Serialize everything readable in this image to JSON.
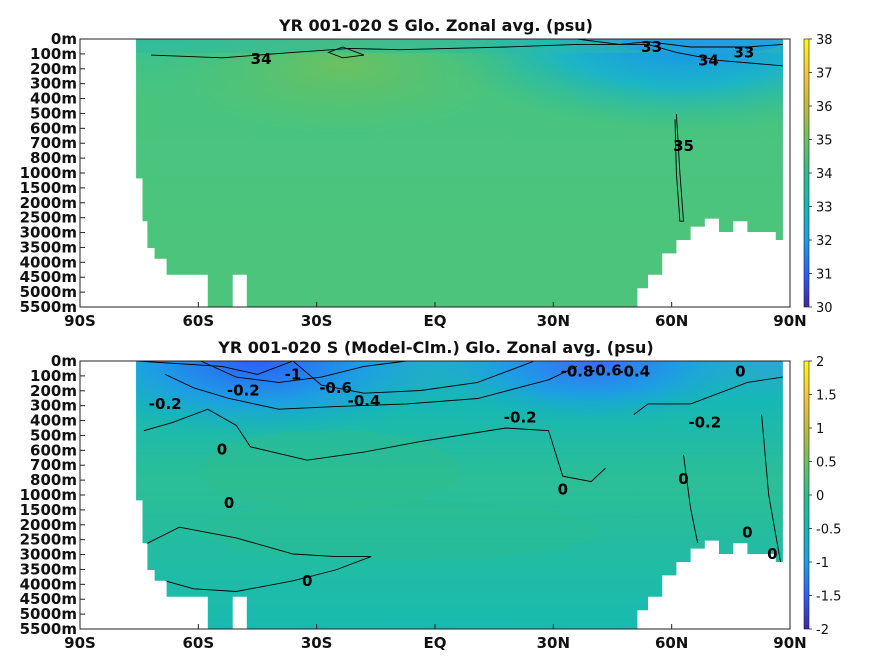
{
  "chart_data": [
    {
      "type": "heatmap",
      "title": "YR 001-020 S Glo. Zonal avg. (psu)",
      "x_ticks": [
        "90S",
        "60S",
        "30S",
        "EQ",
        "30N",
        "60N",
        "90N"
      ],
      "x_values": [
        -90,
        -60,
        -30,
        0,
        30,
        60,
        90
      ],
      "y_ticks": [
        "0m",
        "100m",
        "200m",
        "300m",
        "400m",
        "500m",
        "600m",
        "700m",
        "800m",
        "1000m",
        "1500m",
        "2000m",
        "2500m",
        "3000m",
        "3500m",
        "4000m",
        "4500m",
        "5000m",
        "5500m"
      ],
      "colorbar": {
        "ticks": [
          "30",
          "31",
          "32",
          "33",
          "34",
          "35",
          "36",
          "37",
          "38"
        ],
        "range": [
          30,
          38
        ]
      },
      "colormap": [
        "#3e26a8",
        "#2f5ef9",
        "#1d9ee4",
        "#14b7b4",
        "#2ebd8c",
        "#6cc160",
        "#c2b93d",
        "#f6c53a",
        "#f9fb15"
      ],
      "contour_labels": [
        "34",
        "33",
        "34",
        "33",
        "35"
      ],
      "field": {
        "base": 34.5,
        "surface_low": [
          {
            "lat": 55,
            "value": 32.6
          }
        ],
        "deep": 34.7,
        "arctic_intermediate": 34.9
      }
    },
    {
      "type": "heatmap",
      "title": "YR 001-020 S (Model-Clm.) Glo. Zonal avg. (psu)",
      "x_ticks": [
        "90S",
        "60S",
        "30S",
        "EQ",
        "30N",
        "60N",
        "90N"
      ],
      "x_values": [
        -90,
        -60,
        -30,
        0,
        30,
        60,
        90
      ],
      "y_ticks": [
        "0m",
        "100m",
        "200m",
        "300m",
        "400m",
        "500m",
        "600m",
        "700m",
        "800m",
        "1000m",
        "1500m",
        "2000m",
        "2500m",
        "3000m",
        "3500m",
        "4000m",
        "4500m",
        "5000m",
        "5500m"
      ],
      "colorbar": {
        "ticks": [
          "-2",
          "-1.5",
          "-1",
          "-0.5",
          "0",
          "0.5",
          "1",
          "1.5",
          "2"
        ],
        "range": [
          -2,
          2
        ]
      },
      "colormap": [
        "#3e26a8",
        "#2f5ef9",
        "#1d9ee4",
        "#14b7b4",
        "#2ebd8c",
        "#6cc160",
        "#c2b93d",
        "#f6c53a",
        "#f9fb15"
      ],
      "contour_labels": [
        "-0.2",
        "-0.2",
        "-1",
        "-0.6",
        "-0.4",
        "-0.2",
        "-0.8",
        "-0.6",
        "-0.4",
        "0",
        "-0.2",
        "0",
        "0",
        "0",
        "0",
        "0",
        "0",
        "0"
      ],
      "field": {
        "base": 0.0,
        "surface_biases": [
          {
            "lat": -30,
            "value": -1.2
          },
          {
            "lat": 38,
            "value": -0.9
          }
        ]
      }
    }
  ]
}
